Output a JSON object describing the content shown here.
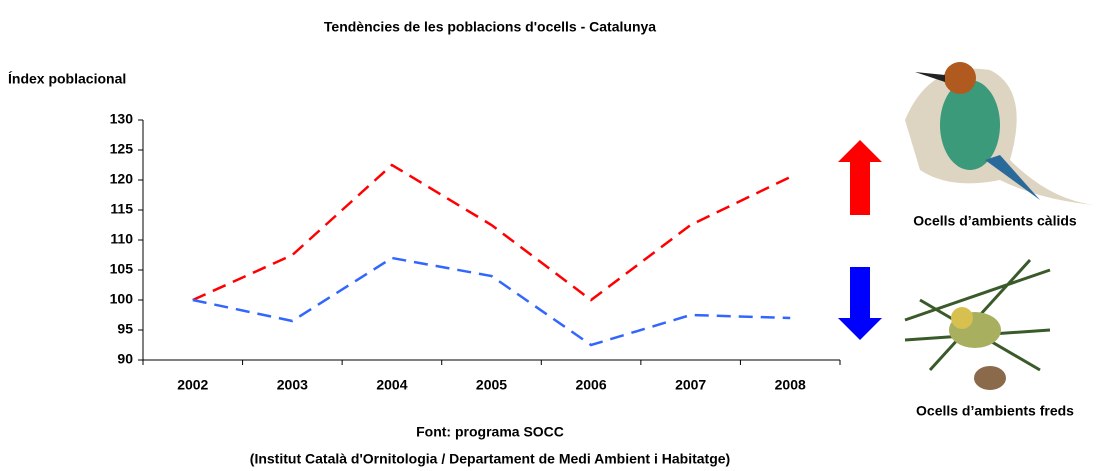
{
  "chart_data": {
    "type": "line",
    "title": "Tendències de les poblacions d'ocells - Catalunya",
    "y_label": "Índex poblacional",
    "categories": [
      "2002",
      "2003",
      "2004",
      "2005",
      "2006",
      "2007",
      "2008"
    ],
    "series": [
      {
        "name": "Ocells d’ambients càlids",
        "color": "#ff0000",
        "values": [
          100,
          107.5,
          122.5,
          112.5,
          100,
          112.5,
          120.5
        ]
      },
      {
        "name": "Ocells d’ambients freds",
        "color": "#3366ff",
        "values": [
          100,
          96.5,
          107,
          104,
          92.5,
          97.5,
          97
        ]
      }
    ],
    "ylim": [
      90,
      130
    ],
    "yticks": [
      90,
      95,
      100,
      105,
      110,
      115,
      120,
      125,
      130
    ],
    "grid": false,
    "source": [
      "Font: programa SOCC",
      "(Institut Català d'Ornitologia / Departament de Medi Ambient i Habitatge)"
    ]
  }
}
